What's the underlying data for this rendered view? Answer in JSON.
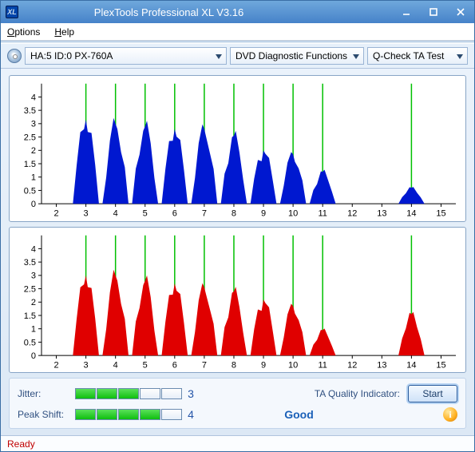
{
  "window": {
    "title": "PlexTools Professional XL V3.16",
    "appicon_text": "XL"
  },
  "menu": {
    "options": "Options",
    "help": "Help"
  },
  "toolbar": {
    "device": "HA:5 ID:0  PX-760A",
    "function": "DVD Diagnostic Functions",
    "test": "Q-Check TA Test"
  },
  "chart": {
    "x_ticks": [
      2,
      3,
      4,
      5,
      6,
      7,
      8,
      9,
      10,
      11,
      12,
      13,
      14,
      15
    ],
    "y_ticks": [
      0,
      0.5,
      1.0,
      1.5,
      2.0,
      2.5,
      3.0,
      3.5,
      4.0
    ],
    "xlim": [
      1.5,
      15.5
    ],
    "ylim": [
      0,
      4.5
    ],
    "marked_x": [
      3,
      4,
      5,
      6,
      7,
      8,
      9,
      10,
      11,
      14
    ],
    "grid_color": "#c8c8c8",
    "green_line_color": "#00c000",
    "top_fill": "#0018d0",
    "bottom_fill": "#e00000",
    "background": "#ffffff",
    "top_peaks": [
      [
        3,
        3.15
      ],
      [
        4,
        3.0
      ],
      [
        5,
        2.9
      ],
      [
        6,
        2.8
      ],
      [
        7,
        2.8
      ],
      [
        8,
        2.55
      ],
      [
        9,
        2.0
      ],
      [
        10,
        1.85
      ],
      [
        11,
        1.2
      ],
      [
        14,
        0.6
      ]
    ],
    "bottom_peaks": [
      [
        3,
        3.0
      ],
      [
        4,
        3.0
      ],
      [
        5,
        2.8
      ],
      [
        6,
        2.7
      ],
      [
        7,
        2.55
      ],
      [
        8,
        2.4
      ],
      [
        9,
        2.1
      ],
      [
        10,
        1.85
      ],
      [
        11,
        0.95
      ],
      [
        14,
        1.55
      ]
    ],
    "peak_half_width": 0.44
  },
  "metrics": {
    "jitter_label": "Jitter:",
    "jitter_value": 3,
    "jitter_max": 5,
    "peakshift_label": "Peak Shift:",
    "peakshift_value": 4,
    "peakshift_max": 5,
    "ta_label": "TA Quality Indicator:",
    "ta_value": "Good",
    "start_label": "Start",
    "bar_filled_color": "#1cc91c",
    "bar_empty_color": "#f0f4fa"
  },
  "status": {
    "text": "Ready"
  }
}
